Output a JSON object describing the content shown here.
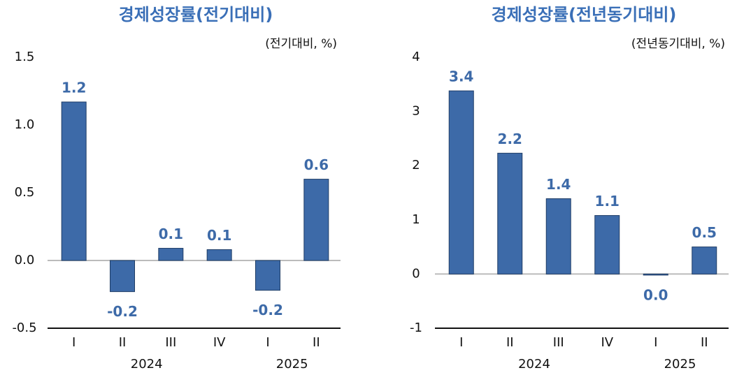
{
  "chart_data": [
    {
      "type": "bar",
      "title": "경제성장률(전기대비)",
      "unit": "(전기대비, %)",
      "categories": [
        "I",
        "II",
        "III",
        "IV",
        "I",
        "II"
      ],
      "category_groups": [
        "2024",
        "2024",
        "2024",
        "2024",
        "2025",
        "2025"
      ],
      "values": [
        1.17,
        -0.23,
        0.09,
        0.08,
        -0.22,
        0.6
      ],
      "value_labels": [
        "1.2",
        "-0.2",
        "0.1",
        "0.1",
        "-0.2",
        "0.6"
      ],
      "color": "#3d6aa8",
      "ylim": [
        -0.5,
        1.5
      ],
      "yticks": [
        -0.5,
        {
          "value": 0,
          "label": "0.0"
        },
        0.5,
        {
          "value": 1,
          "label": "1.0"
        },
        1.5
      ]
    },
    {
      "type": "bar",
      "title": "경제성장률(전년동기대비)",
      "unit": "(전년동기대비, %)",
      "categories": [
        "I",
        "II",
        "III",
        "IV",
        "I",
        "II"
      ],
      "category_groups": [
        "2024",
        "2024",
        "2024",
        "2024",
        "2025",
        "2025"
      ],
      "values": [
        3.38,
        2.23,
        1.39,
        1.08,
        -0.02,
        0.5
      ],
      "value_labels": [
        "3.4",
        "2.2",
        "1.4",
        "1.1",
        "0.0",
        "0.5"
      ],
      "color": "#3d6aa8",
      "ylim": [
        -1,
        4
      ],
      "yticks": [
        -1,
        0,
        1,
        2,
        3,
        4
      ]
    }
  ]
}
